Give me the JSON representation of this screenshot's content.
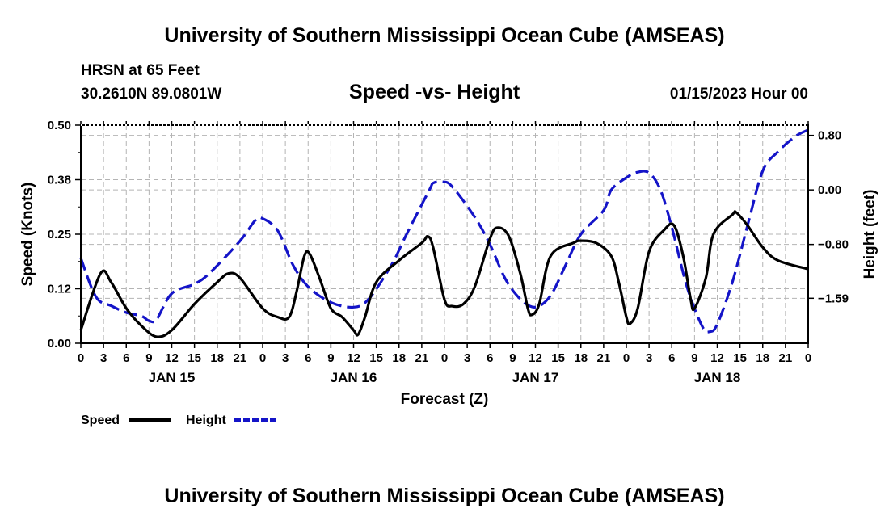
{
  "page": {
    "title_top": "University of Southern Mississippi Ocean Cube (AMSEAS)",
    "title_bottom": "University of Southern Mississippi Ocean Cube (AMSEAS)",
    "station": "HRSN at 65 Feet",
    "coords": "30.2610N  89.0801W",
    "subtitle": "Speed -vs- Height",
    "datetime": "01/15/2023 Hour 00"
  },
  "chart_data": {
    "type": "line",
    "title": "Speed -vs- Height",
    "xlabel": "Forecast (Z)",
    "ylabel_left": "Speed (Knots)",
    "ylabel_right": "Height (feet)",
    "xlim": [
      0,
      96
    ],
    "ylim_left": [
      0,
      0.5
    ],
    "ylim_right": [
      -2.25,
      0.95
    ],
    "grid": true,
    "x_ticks": [
      0,
      3,
      6,
      9,
      12,
      15,
      18,
      21,
      24,
      27,
      30,
      33,
      36,
      39,
      42,
      45,
      48,
      51,
      54,
      57,
      60,
      63,
      66,
      69,
      72,
      75,
      78,
      81,
      84,
      87,
      90,
      93,
      96
    ],
    "x_tick_labels": [
      "0",
      "3",
      "6",
      "9",
      "12",
      "15",
      "18",
      "21",
      "0",
      "3",
      "6",
      "9",
      "12",
      "15",
      "18",
      "21",
      "0",
      "3",
      "6",
      "9",
      "12",
      "15",
      "18",
      "21",
      "0",
      "3",
      "6",
      "9",
      "12",
      "15",
      "18",
      "21",
      "0"
    ],
    "day_labels": [
      {
        "x": 12,
        "label": "JAN 15"
      },
      {
        "x": 36,
        "label": "JAN 16"
      },
      {
        "x": 60,
        "label": "JAN 17"
      },
      {
        "x": 84,
        "label": "JAN 18"
      }
    ],
    "left_ticks": [
      0,
      0.125,
      0.25,
      0.375,
      0.5
    ],
    "left_tick_labels": [
      "0.00",
      "0.12",
      "0.25",
      "0.38",
      "0.50"
    ],
    "right_ticks": [
      0.8,
      0.0,
      -0.8,
      -1.59
    ],
    "right_tick_labels": [
      "0.80",
      "0.00",
      "−0.80",
      "−1.59"
    ],
    "legend": [
      {
        "name": "Speed",
        "color": "#000000",
        "dash": "solid"
      },
      {
        "name": "Height",
        "color": "#1414c8",
        "dash": "dashed"
      }
    ],
    "series": [
      {
        "name": "Speed",
        "axis": "left",
        "color": "#000000",
        "points": [
          [
            0,
            0.03
          ],
          [
            2.6,
            0.16
          ],
          [
            4,
            0.14
          ],
          [
            6,
            0.08
          ],
          [
            8,
            0.04
          ],
          [
            10,
            0.015
          ],
          [
            12,
            0.03
          ],
          [
            15,
            0.09
          ],
          [
            18,
            0.14
          ],
          [
            19.5,
            0.16
          ],
          [
            21,
            0.15
          ],
          [
            24,
            0.08
          ],
          [
            26,
            0.06
          ],
          [
            27.5,
            0.06
          ],
          [
            28.5,
            0.12
          ],
          [
            29.5,
            0.2
          ],
          [
            30.2,
            0.205
          ],
          [
            31.5,
            0.15
          ],
          [
            33,
            0.08
          ],
          [
            34.5,
            0.06
          ],
          [
            36,
            0.03
          ],
          [
            36.6,
            0.02
          ],
          [
            37.5,
            0.06
          ],
          [
            39,
            0.14
          ],
          [
            42,
            0.19
          ],
          [
            45,
            0.23
          ],
          [
            45.8,
            0.245
          ],
          [
            46.5,
            0.22
          ],
          [
            48,
            0.1
          ],
          [
            49,
            0.085
          ],
          [
            50.5,
            0.09
          ],
          [
            52,
            0.13
          ],
          [
            54,
            0.24
          ],
          [
            55,
            0.265
          ],
          [
            56.5,
            0.245
          ],
          [
            58,
            0.16
          ],
          [
            59,
            0.08
          ],
          [
            59.5,
            0.065
          ],
          [
            60.5,
            0.09
          ],
          [
            62,
            0.2
          ],
          [
            65,
            0.23
          ],
          [
            66,
            0.235
          ],
          [
            68,
            0.23
          ],
          [
            70,
            0.2
          ],
          [
            71,
            0.14
          ],
          [
            72,
            0.06
          ],
          [
            72.5,
            0.045
          ],
          [
            73.5,
            0.08
          ],
          [
            75,
            0.21
          ],
          [
            77,
            0.26
          ],
          [
            78.3,
            0.27
          ],
          [
            79.5,
            0.2
          ],
          [
            80.5,
            0.1
          ],
          [
            81,
            0.08
          ],
          [
            82.5,
            0.15
          ],
          [
            83.5,
            0.25
          ],
          [
            86,
            0.295
          ],
          [
            86.5,
            0.3
          ],
          [
            88,
            0.27
          ],
          [
            90,
            0.22
          ],
          [
            92,
            0.19
          ],
          [
            96,
            0.17
          ]
        ]
      },
      {
        "name": "Height",
        "axis": "right",
        "color": "#1414c8",
        "points": [
          [
            0,
            -1.0
          ],
          [
            2,
            -1.57
          ],
          [
            4,
            -1.7
          ],
          [
            6,
            -1.8
          ],
          [
            8,
            -1.85
          ],
          [
            9,
            -1.92
          ],
          [
            10,
            -1.9
          ],
          [
            12,
            -1.52
          ],
          [
            15,
            -1.38
          ],
          [
            17,
            -1.22
          ],
          [
            21,
            -0.75
          ],
          [
            23,
            -0.45
          ],
          [
            24,
            -0.42
          ],
          [
            26,
            -0.6
          ],
          [
            28,
            -1.1
          ],
          [
            30,
            -1.42
          ],
          [
            33,
            -1.65
          ],
          [
            36,
            -1.72
          ],
          [
            38,
            -1.6
          ],
          [
            41,
            -1.1
          ],
          [
            43,
            -0.65
          ],
          [
            46,
            0.0
          ],
          [
            46.5,
            0.1
          ],
          [
            47.7,
            0.12
          ],
          [
            49,
            0.05
          ],
          [
            52,
            -0.4
          ],
          [
            54,
            -0.8
          ],
          [
            56,
            -1.3
          ],
          [
            58,
            -1.6
          ],
          [
            60,
            -1.72
          ],
          [
            62,
            -1.55
          ],
          [
            64,
            -1.1
          ],
          [
            66,
            -0.65
          ],
          [
            69,
            -0.3
          ],
          [
            70,
            0.0
          ],
          [
            72,
            0.18
          ],
          [
            73.5,
            0.26
          ],
          [
            75,
            0.25
          ],
          [
            76.5,
            0.0
          ],
          [
            78,
            -0.55
          ],
          [
            80,
            -1.42
          ],
          [
            82,
            -2.0
          ],
          [
            83,
            -2.08
          ],
          [
            84,
            -1.97
          ],
          [
            86,
            -1.35
          ],
          [
            88,
            -0.52
          ],
          [
            90,
            0.28
          ],
          [
            92,
            0.56
          ],
          [
            94,
            0.76
          ],
          [
            95,
            0.83
          ],
          [
            96,
            0.88
          ]
        ]
      }
    ]
  }
}
